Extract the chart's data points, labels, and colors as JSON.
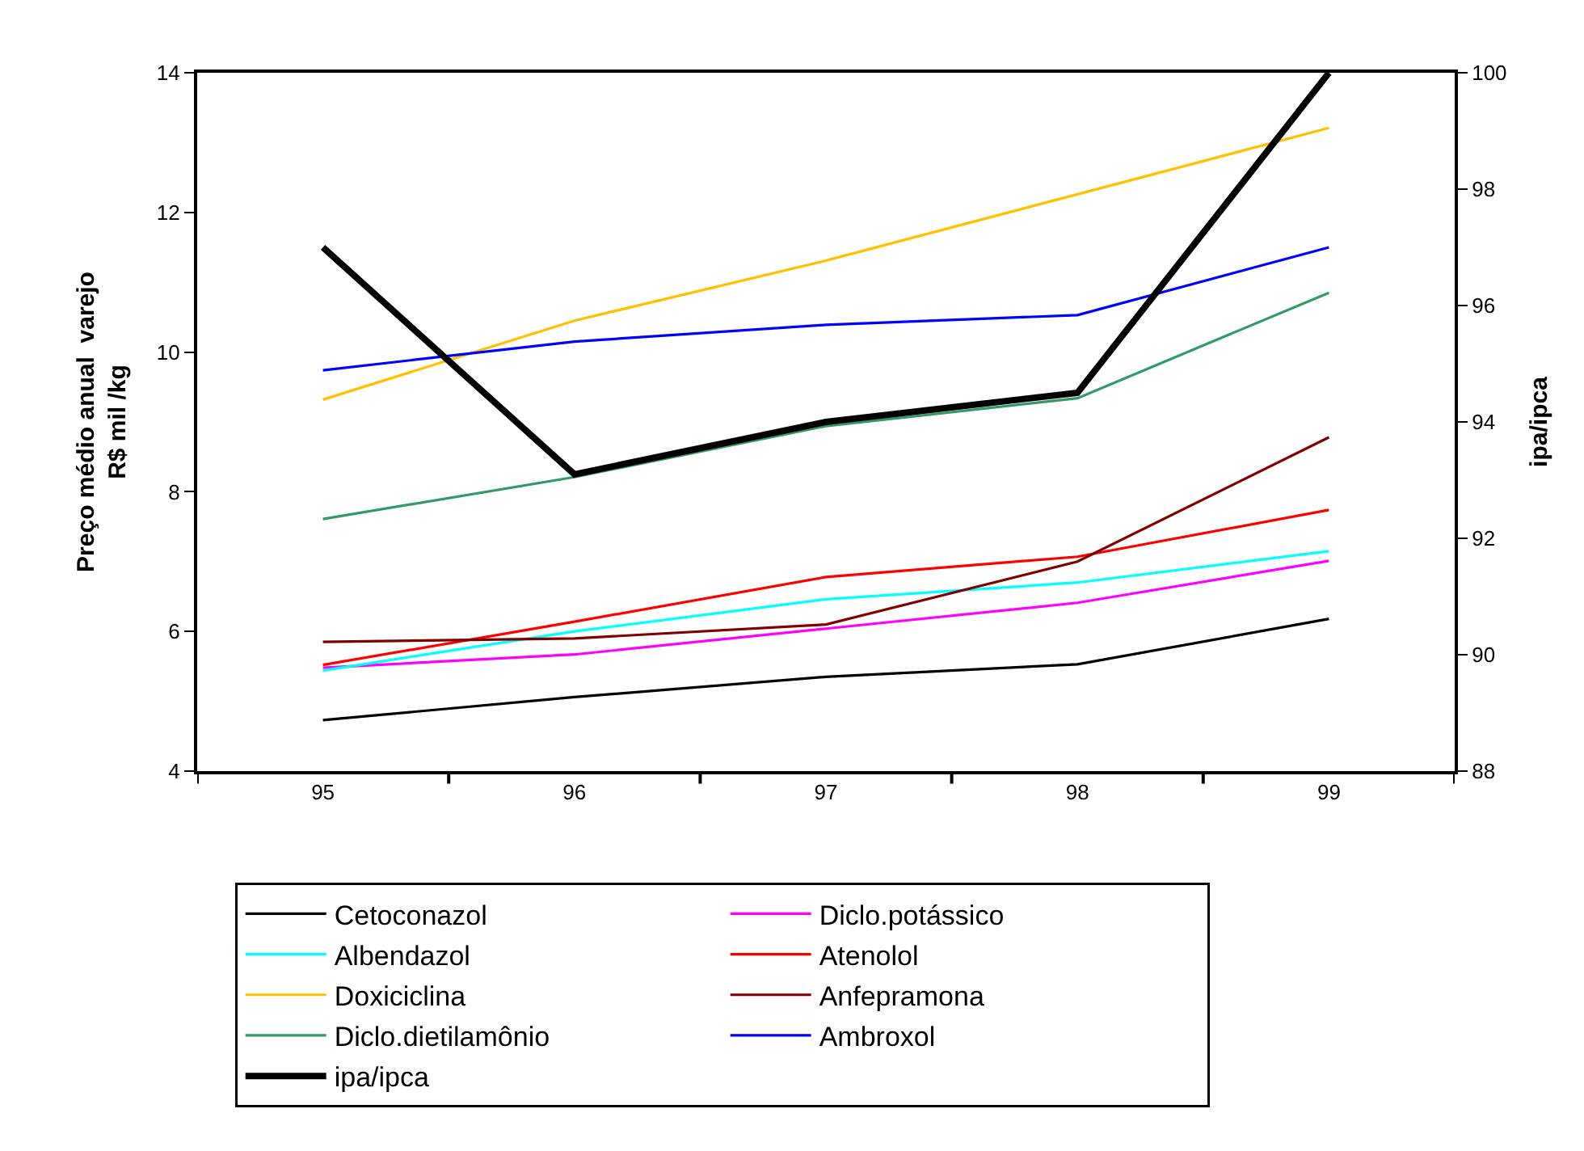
{
  "chart_data": {
    "type": "line",
    "ylabel": "Preço médio anual  varejo\nR$ mil /kg",
    "y2label": "ipa/ipca",
    "categories": [
      "95",
      "96",
      "97",
      "98",
      "99"
    ],
    "ylim": [
      4,
      14
    ],
    "yticks": [
      4,
      6,
      8,
      10,
      12,
      14
    ],
    "y2lim": [
      88,
      100
    ],
    "y2ticks": [
      88,
      90,
      92,
      94,
      96,
      98,
      100
    ],
    "grid": false,
    "legend": "bottom",
    "series": [
      {
        "name": "Cetoconazol",
        "color": "#000000",
        "values": [
          4.73,
          5.06,
          5.35,
          5.53,
          6.18
        ]
      },
      {
        "name": "Diclo.potássico",
        "color": "#ff00ff",
        "values": [
          5.48,
          5.67,
          6.04,
          6.41,
          7.01
        ]
      },
      {
        "name": "Albendazol",
        "color": "#00ffff",
        "values": [
          5.44,
          6.0,
          6.46,
          6.7,
          7.15
        ]
      },
      {
        "name": "Atenolol",
        "color": "#ff0000",
        "values": [
          5.52,
          6.14,
          6.78,
          7.07,
          7.74
        ]
      },
      {
        "name": "Doxiciclina",
        "color": "#ffc000",
        "values": [
          9.32,
          10.45,
          11.31,
          12.26,
          13.21
        ]
      },
      {
        "name": "Anfepramona",
        "color": "#800000",
        "values": [
          5.85,
          5.9,
          6.1,
          7.0,
          8.78
        ]
      },
      {
        "name": "Diclo.dietilamônio",
        "color": "#339966",
        "values": [
          7.61,
          8.21,
          8.94,
          9.34,
          10.85
        ]
      },
      {
        "name": "Ambroxol",
        "color": "#0000ff",
        "values": [
          9.74,
          10.15,
          10.39,
          10.53,
          11.5
        ]
      },
      {
        "name": "ipa/ipca",
        "color": "#000000",
        "axis": "y2",
        "values": [
          97.0,
          93.1,
          94.0,
          94.5,
          100
        ]
      }
    ]
  }
}
